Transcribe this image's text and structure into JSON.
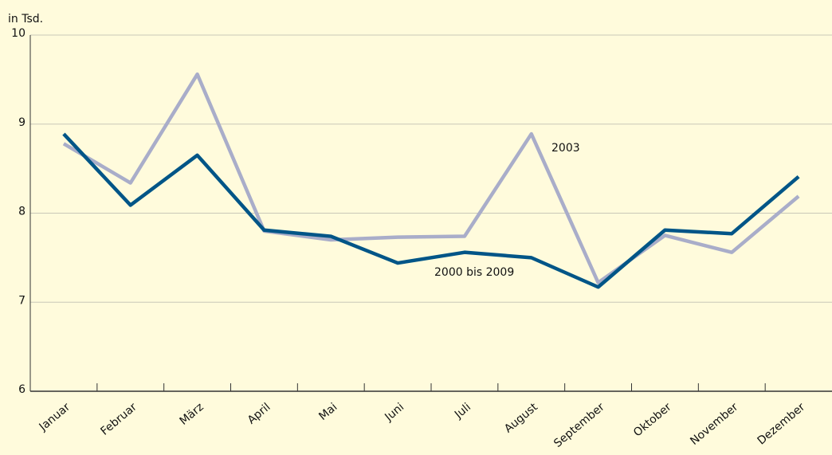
{
  "chart_data": {
    "type": "line",
    "y_label": "in Tsd.",
    "categories": [
      "Januar",
      "Februar",
      "März",
      "April",
      "Mai",
      "Juni",
      "Juli",
      "August",
      "September",
      "Oktober",
      "November",
      "Dezember"
    ],
    "series": [
      {
        "name": "2003",
        "color": "#a9adc9",
        "values": [
          8.78,
          8.34,
          9.56,
          7.8,
          7.7,
          7.73,
          7.74,
          8.89,
          7.22,
          7.75,
          7.56,
          8.19
        ]
      },
      {
        "name": "2000 bis 2009",
        "color": "#005587",
        "values": [
          8.89,
          8.09,
          8.65,
          7.81,
          7.74,
          7.44,
          7.56,
          7.5,
          7.17,
          7.81,
          7.77,
          8.41
        ]
      }
    ],
    "ylim": [
      6,
      10
    ],
    "yticks": [
      6,
      7,
      8,
      9,
      10
    ],
    "grid": true
  }
}
